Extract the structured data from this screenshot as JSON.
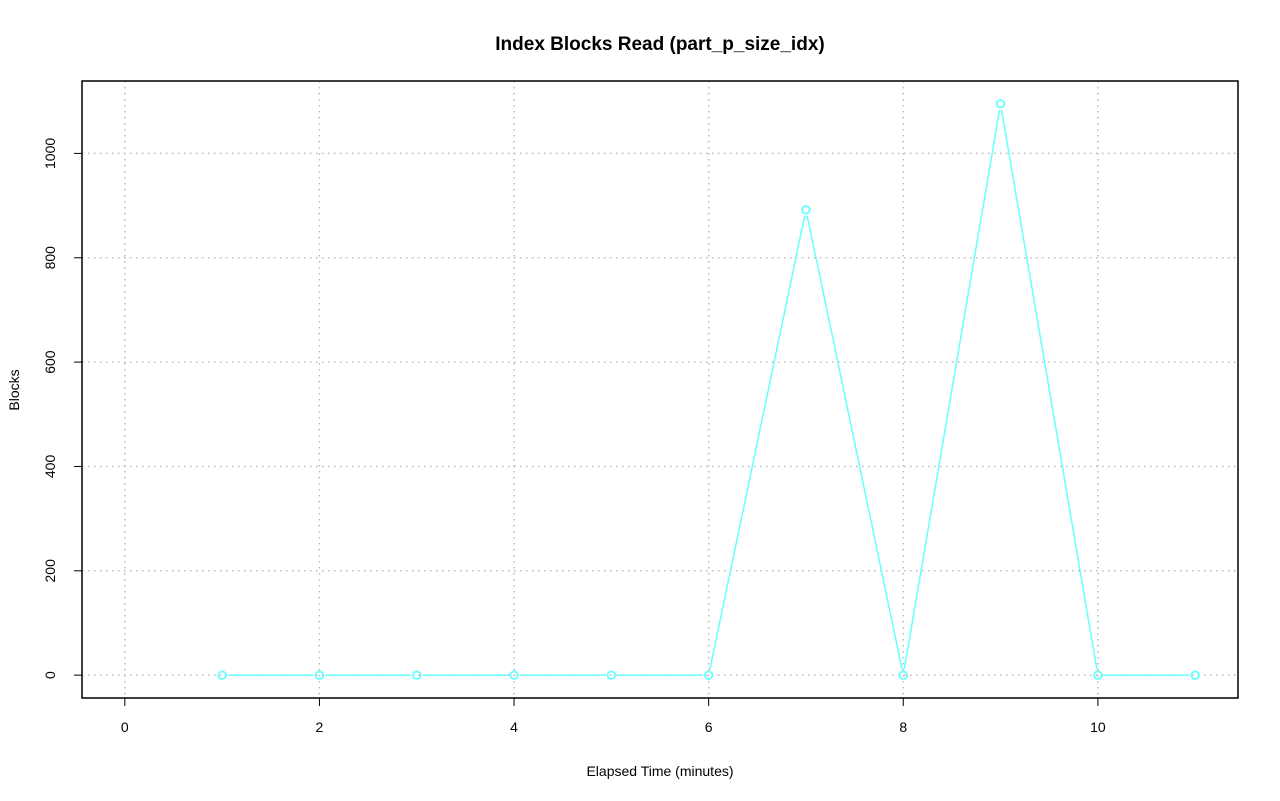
{
  "chart_data": {
    "type": "line",
    "title": "Index Blocks Read (part_p_size_idx)",
    "xlabel": "Elapsed Time (minutes)",
    "ylabel": "Blocks",
    "x": [
      1,
      2,
      3,
      4,
      5,
      6,
      7,
      8,
      9,
      10,
      11
    ],
    "series": [
      {
        "values": [
          0,
          0,
          0,
          0,
          0,
          0,
          892,
          0,
          1095,
          0,
          0
        ],
        "color": "#66ffff"
      }
    ],
    "xlim": [
      0,
      11
    ],
    "ylim": [
      0,
      1095
    ],
    "xticks": [
      0,
      2,
      4,
      6,
      8,
      10
    ],
    "yticks": [
      0,
      200,
      400,
      600,
      800,
      1000
    ],
    "grid": true,
    "markers": "open-circle"
  }
}
